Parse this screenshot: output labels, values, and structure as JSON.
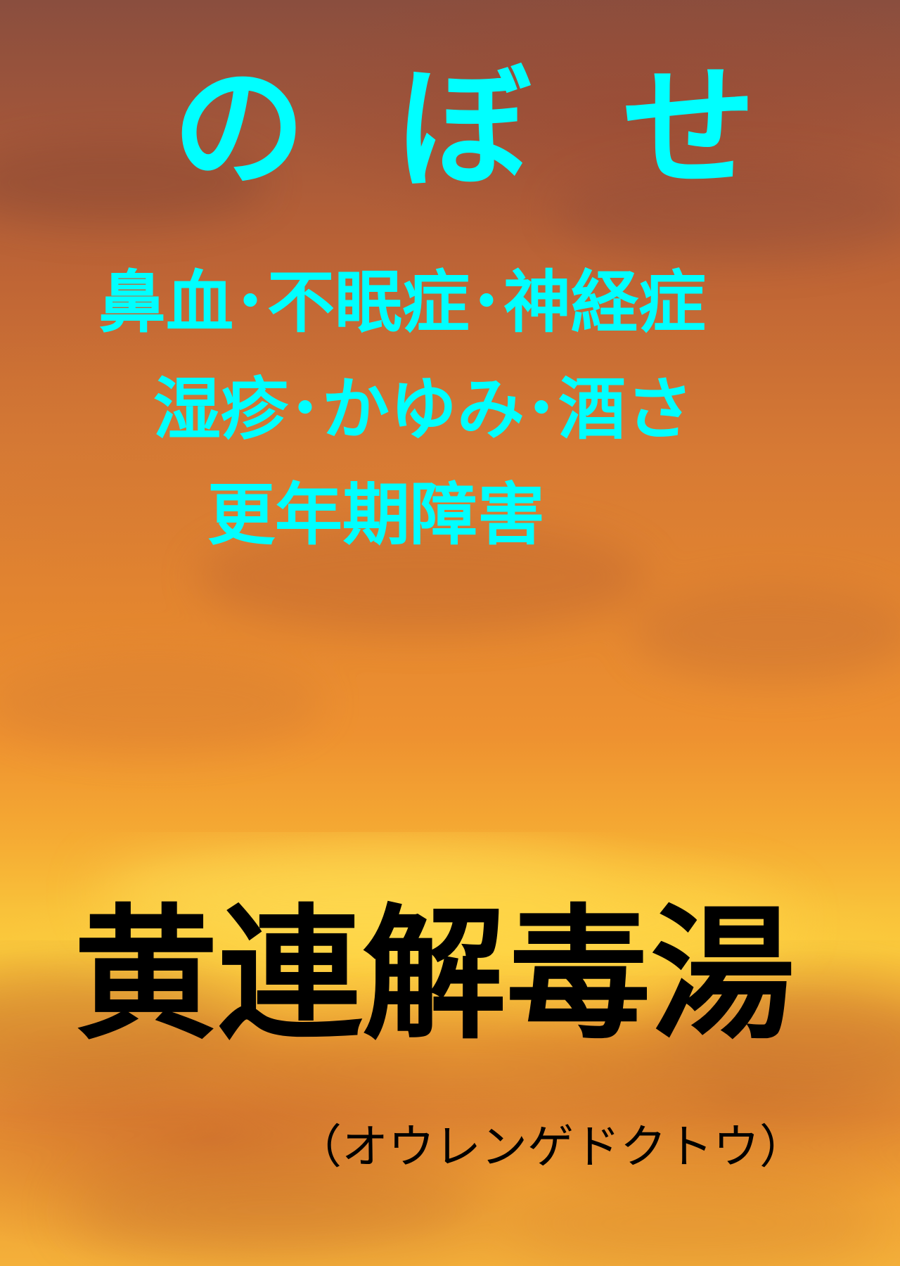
{
  "title": {
    "chars": [
      "の",
      "ぼ",
      "せ"
    ],
    "color": "#00ffff"
  },
  "symptoms": {
    "line1": "鼻血･不眠症･神経症",
    "line2": "湿疹･かゆみ･酒さ",
    "line3": "更年期障害"
  },
  "remedy": {
    "name": "黄連解毒湯",
    "reading": "（オウレンゲドクトウ）",
    "color": "#000000"
  },
  "background": {
    "description_colors": [
      "#8a4e3e",
      "#d77a34",
      "#fbca3c",
      "#ea9134"
    ]
  }
}
